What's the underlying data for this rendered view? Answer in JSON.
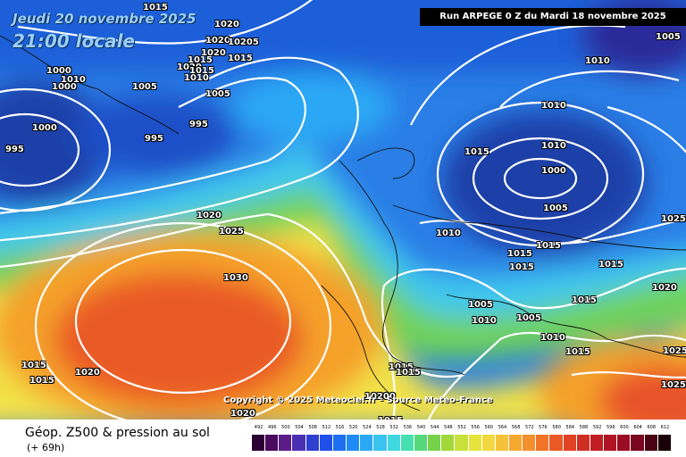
{
  "header": {
    "date_line": "Jeudi 20 novembre 2025",
    "time_line": "21:00 locale",
    "run_info": "Run ARPEGE 0 Z du Mardi 18 novembre 2025"
  },
  "map": {
    "copyright": "Copyright © 2025 Meteociel.fr - Source Meteo-France",
    "pressure_labels": [
      "1015",
      "1020",
      "1020",
      "1020",
      "10205",
      "1015",
      "1020",
      "1015",
      "1015",
      "1000",
      "1000",
      "1010",
      "1010",
      "1005",
      "1005",
      "1000",
      "995",
      "995",
      "995",
      "1005",
      "1010",
      "1010",
      "1000",
      "1005",
      "1015",
      "1010",
      "1020",
      "1025",
      "1030",
      "1010",
      "1015",
      "1015",
      "1015",
      "1015",
      "1025",
      "1020",
      "1005",
      "1010",
      "1005",
      "1015",
      "1010",
      "1015",
      "1025",
      "1025",
      "1015",
      "1020",
      "1015",
      "1015",
      "10200",
      "1020",
      "1015",
      "1015"
    ],
    "colors": {
      "ocean_deep": "#1c3fa8",
      "low_blue": "#1f6fe0",
      "cyan": "#41d6f0",
      "green": "#67d05a",
      "yellow": "#f2e24a",
      "orange": "#f5a12c",
      "red": "#e8522a",
      "isobar": "#ffffff"
    }
  },
  "footer": {
    "title": "Géop. Z500 & pression au sol",
    "subtitle": "(+ 69h)"
  },
  "legend": {
    "labels": [
      "492",
      "496",
      "500",
      "504",
      "508",
      "512",
      "516",
      "520",
      "524",
      "528",
      "532",
      "536",
      "540",
      "544",
      "548",
      "552",
      "556",
      "560",
      "564",
      "568",
      "572",
      "576",
      "580",
      "584",
      "588",
      "592",
      "596",
      "600",
      "604",
      "608",
      "612"
    ],
    "colors": [
      "#2b0033",
      "#4a0a5e",
      "#5b1c8a",
      "#4a2fb5",
      "#2f3fd1",
      "#1f4fe8",
      "#1e6ef0",
      "#1f8cf5",
      "#2aa8f5",
      "#39c4f0",
      "#3fd8e0",
      "#45e0b0",
      "#55d87a",
      "#75d24a",
      "#a0d83a",
      "#c8e03a",
      "#e6e43c",
      "#f2d840",
      "#f5c23a",
      "#f5a830",
      "#f58f2a",
      "#f07428",
      "#ea5a26",
      "#e04224",
      "#d02e22",
      "#c01e22",
      "#b01424",
      "#9a0c24",
      "#7a0620",
      "#4a0214",
      "#1a0008"
    ]
  }
}
